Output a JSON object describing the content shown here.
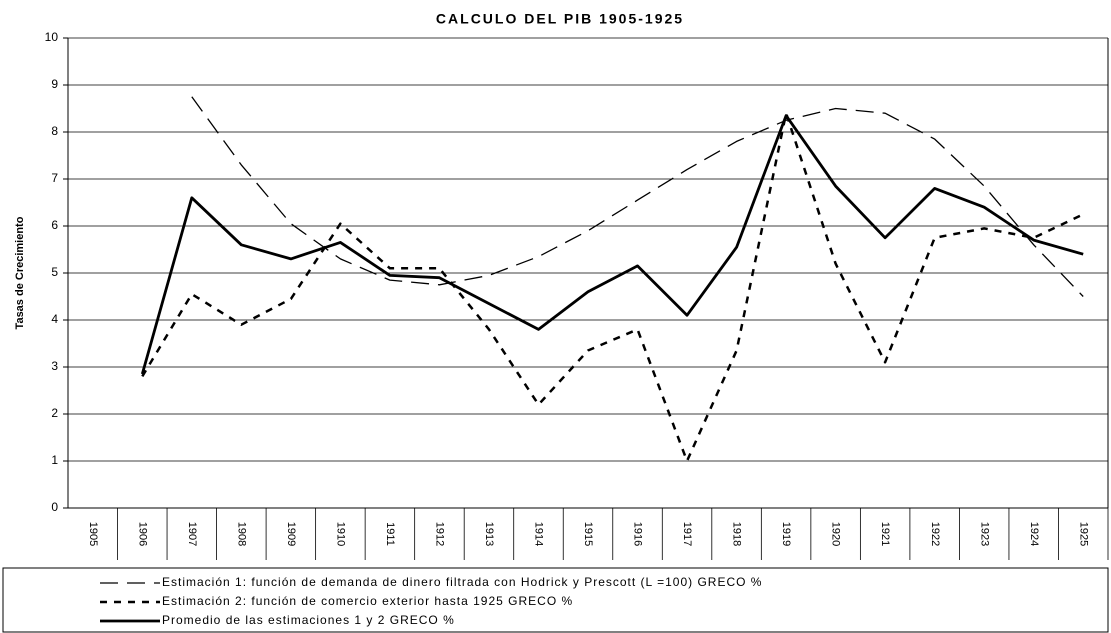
{
  "chart_data": {
    "type": "line",
    "title": "CALCULO DEL PIB 1905-1925",
    "y_label": "Tasas de Crecimiento",
    "categories": [
      "1905",
      "1906",
      "1907",
      "1908",
      "1909",
      "1910",
      "1911",
      "1912",
      "1913",
      "1914",
      "1915",
      "1916",
      "1917",
      "1918",
      "1919",
      "1920",
      "1921",
      "1922",
      "1923",
      "1924",
      "1925"
    ],
    "series": [
      {
        "name": "Estimación 1: función de demanda de dinero filtrada con Hodrick y Prescott (L =100) GRECO %",
        "color": "#000000",
        "style": "dashed",
        "values": [
          null,
          null,
          8.75,
          7.3,
          6.05,
          5.3,
          4.85,
          4.75,
          4.95,
          5.35,
          5.9,
          6.55,
          7.2,
          7.8,
          8.25,
          8.5,
          8.4,
          7.85,
          6.85,
          5.6,
          4.5
        ]
      },
      {
        "name": "Estimación 2:  función de comercio exterior hasta 1925 GRECO %",
        "color": "#000000",
        "style": "dotted",
        "values": [
          null,
          2.8,
          4.55,
          3.9,
          4.45,
          6.05,
          5.1,
          5.1,
          3.8,
          2.2,
          3.35,
          3.8,
          1.0,
          3.35,
          8.4,
          5.2,
          3.1,
          5.75,
          5.95,
          5.75,
          6.25
        ]
      },
      {
        "name": "Promedio de las estimaciones 1 y 2 GRECO %",
        "color": "#000000",
        "style": "solid",
        "values": [
          null,
          2.85,
          6.6,
          5.6,
          5.3,
          5.65,
          4.95,
          4.9,
          4.35,
          3.8,
          4.6,
          5.15,
          4.1,
          5.55,
          8.35,
          6.85,
          5.75,
          6.8,
          6.4,
          5.7,
          5.4
        ]
      }
    ],
    "ylim": [
      0,
      10
    ],
    "yticks": [
      0,
      1,
      2,
      3,
      4,
      5,
      6,
      7,
      8,
      9,
      10
    ],
    "grid": true
  }
}
